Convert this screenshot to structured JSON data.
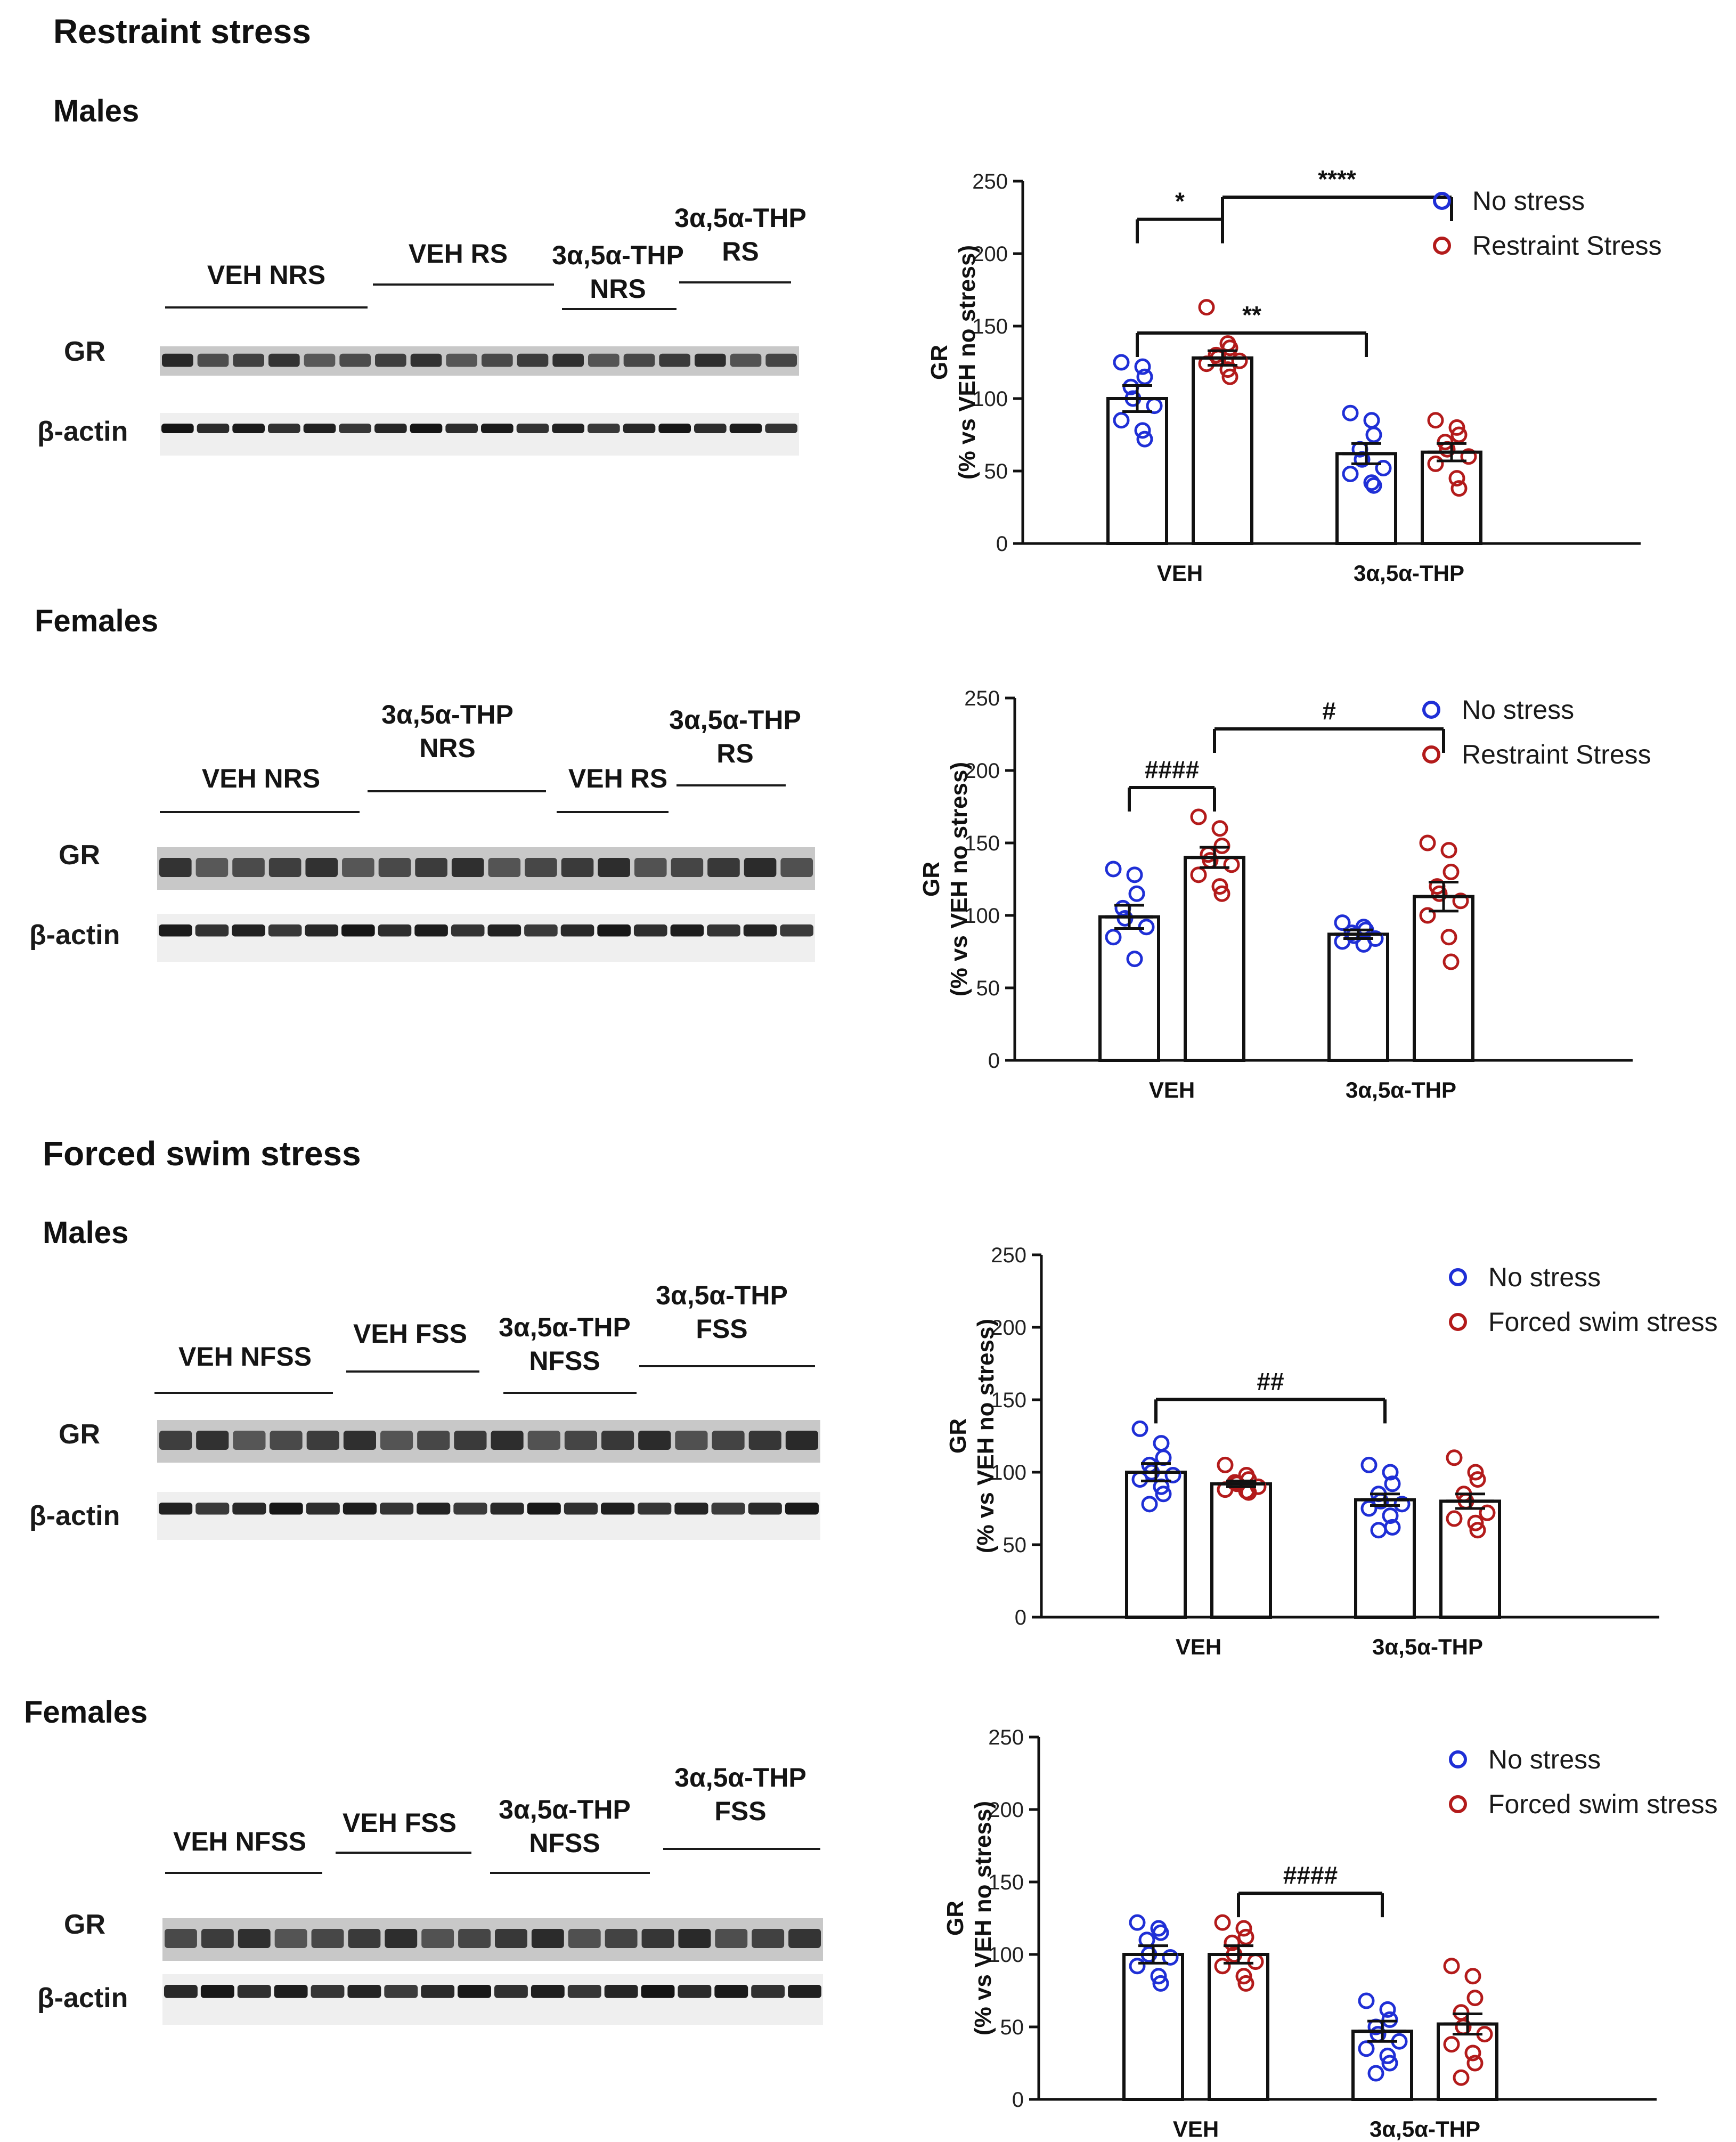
{
  "sections": {
    "restraint": "Restraint stress",
    "swim": "Forced swim stress"
  },
  "colors": {
    "no_stress": "#1f2fd6",
    "stress": "#b31b1b",
    "axis": "#111111"
  },
  "panels": [
    {
      "sex": "Males",
      "gr_label": "GR",
      "actin_label": "β-actin",
      "groups": [
        {
          "label": "VEH NRS"
        },
        {
          "label": "VEH RS"
        },
        {
          "label": "3α,5α-THP NRS"
        },
        {
          "label": "3α,5α-THP RS"
        }
      ],
      "legend": [
        "No stress",
        "Restraint Stress"
      ]
    },
    {
      "sex": "Females",
      "gr_label": "GR",
      "actin_label": "β-actin",
      "groups": [
        {
          "label": "VEH NRS"
        },
        {
          "label": "3α,5α-THP NRS"
        },
        {
          "label": "VEH RS"
        },
        {
          "label": "3α,5α-THP RS"
        }
      ],
      "legend": [
        "No stress",
        "Restraint Stress"
      ]
    },
    {
      "sex": "Males",
      "gr_label": "GR",
      "actin_label": "β-actin",
      "groups": [
        {
          "label": "VEH NFSS"
        },
        {
          "label": "VEH FSS"
        },
        {
          "label": "3α,5α-THP NFSS"
        },
        {
          "label": "3α,5α-THP FSS"
        }
      ],
      "legend": [
        "No stress",
        "Forced swim stress"
      ]
    },
    {
      "sex": "Females",
      "gr_label": "GR",
      "actin_label": "β-actin",
      "groups": [
        {
          "label": "VEH NFSS"
        },
        {
          "label": "VEH FSS"
        },
        {
          "label": "3α,5α-THP NFSS"
        },
        {
          "label": "3α,5α-THP FSS"
        }
      ],
      "legend": [
        "No stress",
        "Forced swim stress"
      ]
    }
  ],
  "chart_data": [
    {
      "type": "bar",
      "title": "Restraint stress — Males",
      "ylabel": "GR\n(% vs VEH no stress)",
      "ylim": [
        0,
        250
      ],
      "yticks": [
        "0",
        "50",
        "100",
        "150",
        "200",
        "250"
      ],
      "categories": [
        "VEH",
        "3α,5α-THP"
      ],
      "series": [
        {
          "name": "No stress",
          "values": [
            100,
            62
          ],
          "sem": [
            9,
            7
          ],
          "points": [
            [
              125,
              122,
              115,
              108,
              100,
              95,
              85,
              78,
              72
            ],
            [
              90,
              85,
              75,
              65,
              58,
              52,
              48,
              42,
              40
            ]
          ]
        },
        {
          "name": "Restraint Stress",
          "values": [
            128,
            63
          ],
          "sem": [
            5,
            6
          ],
          "points": [
            [
              163,
              138,
              135,
              130,
              128,
              126,
              124,
              120,
              115
            ],
            [
              85,
              80,
              75,
              70,
              65,
              60,
              55,
              45,
              38
            ]
          ]
        }
      ],
      "comparisons": [
        {
          "from": [
            0,
            0
          ],
          "to": [
            1,
            0
          ],
          "label": "**"
        },
        {
          "from": [
            0,
            0
          ],
          "to": [
            0,
            1
          ],
          "label": "*"
        },
        {
          "from": [
            0,
            1
          ],
          "to": [
            1,
            1
          ],
          "label": "****"
        }
      ]
    },
    {
      "type": "bar",
      "title": "Restraint stress — Females",
      "ylabel": "GR\n(% vs VEH no stress)",
      "ylim": [
        0,
        250
      ],
      "yticks": [
        "0",
        "50",
        "100",
        "150",
        "200",
        "250"
      ],
      "categories": [
        "VEH",
        "3α,5α-THP"
      ],
      "series": [
        {
          "name": "No stress",
          "values": [
            99,
            87
          ],
          "sem": [
            8,
            3
          ],
          "points": [
            [
              132,
              128,
              115,
              105,
              98,
              92,
              85,
              70
            ],
            [
              95,
              92,
              90,
              88,
              86,
              84,
              82,
              80
            ]
          ]
        },
        {
          "name": "Restraint Stress",
          "values": [
            140,
            113
          ],
          "sem": [
            7,
            10
          ],
          "points": [
            [
              168,
              160,
              148,
              142,
              138,
              135,
              128,
              120,
              115
            ],
            [
              150,
              145,
              130,
              120,
              115,
              110,
              100,
              85,
              68
            ]
          ]
        }
      ],
      "comparisons": [
        {
          "from": [
            0,
            0
          ],
          "to": [
            0,
            1
          ],
          "label": "####"
        },
        {
          "from": [
            0,
            1
          ],
          "to": [
            1,
            1
          ],
          "label": "#"
        }
      ]
    },
    {
      "type": "bar",
      "title": "Forced swim stress — Males",
      "ylabel": "GR\n(% vs VEH no stress)",
      "ylim": [
        0,
        250
      ],
      "yticks": [
        "0",
        "50",
        "100",
        "150",
        "200",
        "250"
      ],
      "categories": [
        "VEH",
        "3α,5α-THP"
      ],
      "series": [
        {
          "name": "No stress",
          "values": [
            100,
            81
          ],
          "sem": [
            6,
            4
          ],
          "points": [
            [
              130,
              120,
              110,
              105,
              100,
              98,
              95,
              90,
              85,
              78
            ],
            [
              105,
              100,
              92,
              85,
              80,
              78,
              75,
              70,
              62,
              60
            ]
          ]
        },
        {
          "name": "Forced swim stress",
          "values": [
            92,
            80
          ],
          "sem": [
            2,
            5
          ],
          "points": [
            [
              105,
              98,
              95,
              93,
              92,
              90,
              88,
              87,
              86
            ],
            [
              110,
              100,
              95,
              85,
              80,
              72,
              68,
              65,
              60
            ]
          ]
        }
      ],
      "comparisons": [
        {
          "from": [
            0,
            0
          ],
          "to": [
            1,
            0
          ],
          "label": "##"
        }
      ]
    },
    {
      "type": "bar",
      "title": "Forced swim stress — Females",
      "ylabel": "GR\n(% vs VEH no stress)",
      "ylim": [
        0,
        250
      ],
      "yticks": [
        "0",
        "50",
        "100",
        "150",
        "200",
        "250"
      ],
      "categories": [
        "VEH",
        "3α,5α-THP"
      ],
      "series": [
        {
          "name": "No stress",
          "values": [
            100,
            47
          ],
          "sem": [
            6,
            7
          ],
          "points": [
            [
              122,
              118,
              115,
              110,
              100,
              98,
              92,
              85,
              80
            ],
            [
              68,
              62,
              55,
              50,
              45,
              40,
              35,
              30,
              25,
              18
            ]
          ]
        },
        {
          "name": "Forced swim stress",
          "values": [
            100,
            52
          ],
          "sem": [
            6,
            7
          ],
          "points": [
            [
              122,
              118,
              112,
              108,
              100,
              95,
              92,
              85,
              80
            ],
            [
              92,
              85,
              70,
              60,
              50,
              45,
              38,
              32,
              25,
              15
            ]
          ]
        }
      ],
      "comparisons": [
        {
          "from": [
            0,
            1
          ],
          "to": [
            1,
            0
          ],
          "label": "####"
        }
      ]
    }
  ]
}
